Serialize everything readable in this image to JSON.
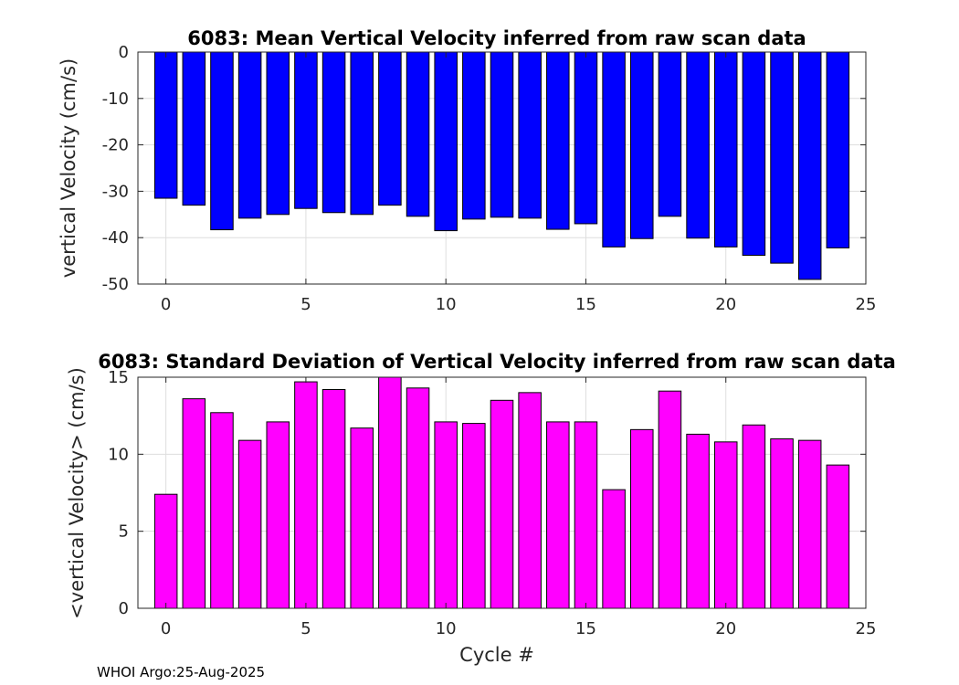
{
  "chart_data": [
    {
      "type": "bar",
      "title": "6083: Mean Vertical Velocity inferred from raw scan data",
      "xlabel": "",
      "ylabel": "vertical Velocity (cm/s)",
      "x": [
        0,
        1,
        2,
        3,
        4,
        5,
        6,
        7,
        8,
        9,
        10,
        11,
        12,
        13,
        14,
        15,
        16,
        17,
        18,
        19,
        20,
        21,
        22,
        23,
        24
      ],
      "values": [
        -31.5,
        -33,
        -38.3,
        -35.8,
        -35,
        -33.7,
        -34.6,
        -35,
        -33,
        -35.4,
        -38.5,
        -36,
        -35.6,
        -35.8,
        -38.2,
        -37,
        -42,
        -40.2,
        -35.4,
        -40.1,
        -42,
        -43.8,
        -45.5,
        -49,
        -42.2
      ],
      "xlim": [
        -1,
        25
      ],
      "ylim": [
        -50,
        0
      ],
      "xticks": [
        0,
        5,
        10,
        15,
        20,
        25
      ],
      "yticks": [
        0,
        -10,
        -20,
        -30,
        -40,
        -50
      ],
      "bar_color": "#0000ff",
      "grid": true
    },
    {
      "type": "bar",
      "title": "6083: Standard Deviation of Vertical Velocity inferred from raw scan data",
      "xlabel": "Cycle #",
      "ylabel": "<vertical Velocity> (cm/s)",
      "x": [
        0,
        1,
        2,
        3,
        4,
        5,
        6,
        7,
        8,
        9,
        10,
        11,
        12,
        13,
        14,
        15,
        16,
        17,
        18,
        19,
        20,
        21,
        22,
        23,
        24
      ],
      "values": [
        7.4,
        13.6,
        12.7,
        10.9,
        12.1,
        14.7,
        14.2,
        11.7,
        15,
        14.3,
        12.1,
        12,
        13.5,
        14,
        12.1,
        12.1,
        7.7,
        11.6,
        14.1,
        11.3,
        10.8,
        11.9,
        11,
        10.9,
        9.3
      ],
      "xlim": [
        -1,
        25
      ],
      "ylim": [
        0,
        15
      ],
      "xticks": [
        0,
        5,
        10,
        15,
        20,
        25
      ],
      "yticks": [
        0,
        5,
        10,
        15
      ],
      "bar_color": "#ff00ff",
      "grid": true
    }
  ],
  "footer": {
    "stamp": "WHOI Argo:25-Aug-2025"
  }
}
